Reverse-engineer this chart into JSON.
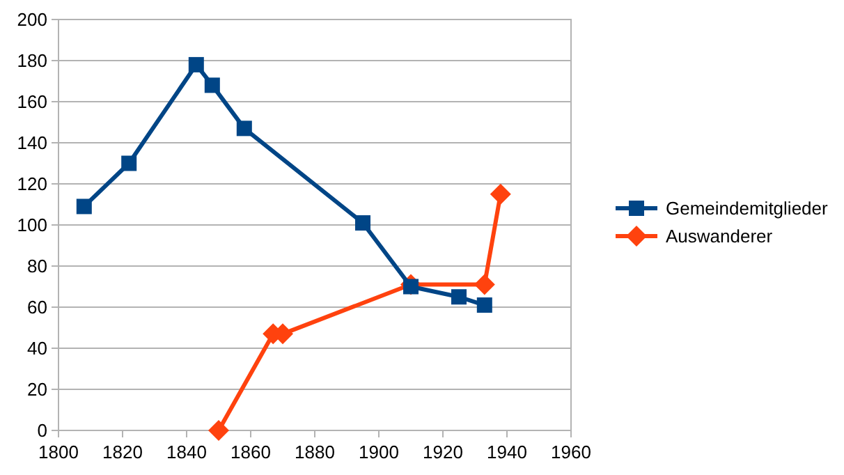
{
  "chart_data": {
    "type": "line",
    "xlim": [
      1800,
      1960
    ],
    "xticks": [
      1800,
      1820,
      1840,
      1860,
      1880,
      1900,
      1920,
      1940,
      1960
    ],
    "ylim": [
      0,
      200
    ],
    "yticks": [
      0,
      20,
      40,
      60,
      80,
      100,
      120,
      140,
      160,
      180,
      200
    ],
    "grid": "y",
    "legend": "right",
    "series": [
      {
        "name": "Gemeindemitglieder",
        "color": "#004586",
        "marker": "square",
        "x": [
          1808,
          1822,
          1843,
          1848,
          1858,
          1895,
          1910,
          1925,
          1933
        ],
        "values": [
          109,
          130,
          178,
          168,
          147,
          101,
          70,
          65,
          61
        ]
      },
      {
        "name": "Auswanderer",
        "color": "#ff420e",
        "marker": "diamond",
        "x": [
          1850,
          1867,
          1870,
          1910,
          1933,
          1938
        ],
        "values": [
          0,
          47,
          47,
          71,
          71,
          115
        ]
      }
    ]
  }
}
